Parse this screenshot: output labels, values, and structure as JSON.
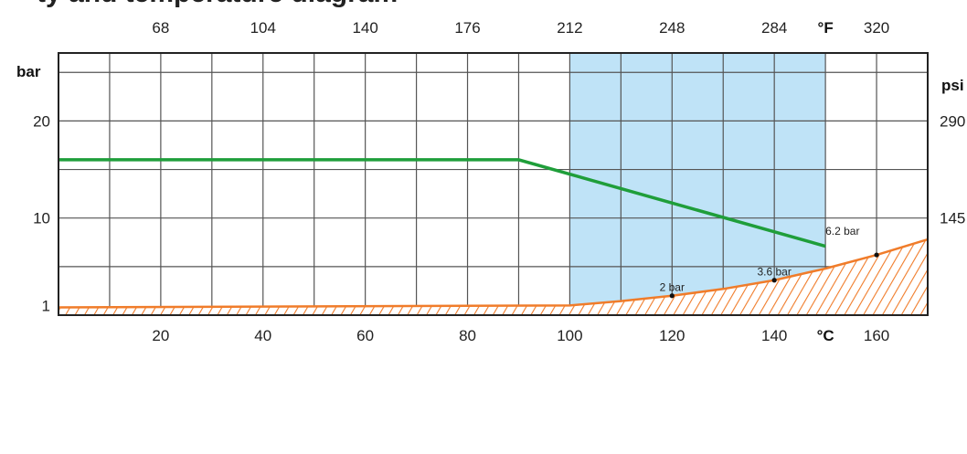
{
  "title": "ty and temperature diagram",
  "colors": {
    "pressure_line": "#1f9e3a",
    "vapor_line": "#f07c2a",
    "vapor_hatch": "#f07c2a",
    "highlight": "#bfe3f7",
    "grid": "#555555"
  },
  "chart_data": {
    "type": "line",
    "title": "ty and temperature diagram",
    "xlabel": "°C",
    "xlabel_top": "°F",
    "ylabel": "bar",
    "ylabel_right": "psi",
    "xlim": [
      0,
      170
    ],
    "ylim": [
      0,
      27
    ],
    "x_ticks": [
      20,
      40,
      60,
      80,
      100,
      120,
      140,
      160
    ],
    "x_ticks_f": [
      {
        "c": 20,
        "f": "68"
      },
      {
        "c": 40,
        "f": "104"
      },
      {
        "c": 60,
        "f": "140"
      },
      {
        "c": 80,
        "f": "176"
      },
      {
        "c": 100,
        "f": "212"
      },
      {
        "c": 120,
        "f": "248"
      },
      {
        "c": 140,
        "f": "284"
      },
      {
        "c": 160,
        "f": "320"
      }
    ],
    "y_ticks": [
      {
        "y": 1,
        "label": "1"
      },
      {
        "y": 10,
        "label": "10"
      },
      {
        "y": 20,
        "label": "20"
      }
    ],
    "y_ticks_psi": [
      {
        "y": 10,
        "label": "145"
      },
      {
        "y": 20,
        "label": "290"
      }
    ],
    "grid": true,
    "highlight_band": [
      100,
      150
    ],
    "series": [
      {
        "type": "line",
        "points": [
          [
            0,
            16
          ],
          [
            90,
            16
          ],
          [
            150,
            7.1
          ]
        ]
      },
      {
        "type": "area",
        "hatched": true,
        "points": [
          [
            0,
            0.8
          ],
          [
            100,
            1.0
          ],
          [
            110,
            1.45
          ],
          [
            120,
            2.0
          ],
          [
            130,
            2.7
          ],
          [
            140,
            3.6
          ],
          [
            150,
            4.8
          ],
          [
            160,
            6.2
          ],
          [
            170,
            7.8
          ]
        ]
      }
    ],
    "annotations": [
      {
        "x": 120,
        "y": 2.0,
        "text": "2 bar"
      },
      {
        "x": 140,
        "y": 3.6,
        "text": "3.6 bar"
      },
      {
        "x": 160,
        "y": 6.2,
        "text": "6.2 bar",
        "label_x": 150,
        "label_y": 8.3
      }
    ]
  }
}
